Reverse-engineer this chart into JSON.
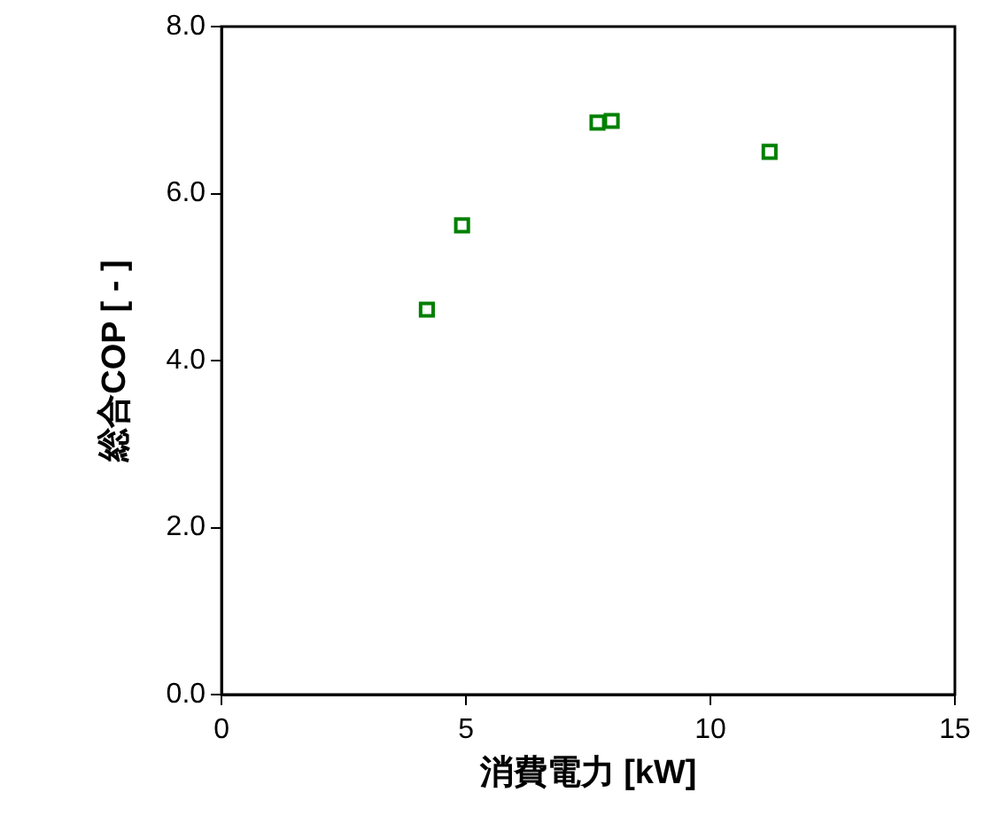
{
  "chart_data": {
    "type": "scatter",
    "xlabel": "消費電力 [kW]",
    "ylabel": "総合COP [ - ]",
    "series": [
      {
        "color": "#008000",
        "x": [
          4.2,
          4.92,
          7.69,
          7.98,
          11.21
        ],
        "values": [
          4.61,
          5.62,
          6.85,
          6.87,
          6.5
        ]
      }
    ],
    "xlim": [
      0,
      15
    ],
    "xticks": [
      0,
      5,
      10,
      15
    ],
    "ylim": [
      0,
      8
    ],
    "yticks": [
      {
        "value": 0,
        "label": "0.0"
      },
      {
        "value": 2,
        "label": "2.0"
      },
      {
        "value": 4,
        "label": "4.0"
      },
      {
        "value": 6,
        "label": "6.0"
      },
      {
        "value": 8,
        "label": "8.0"
      }
    ],
    "marker": "square",
    "grid": false,
    "legend": false
  }
}
